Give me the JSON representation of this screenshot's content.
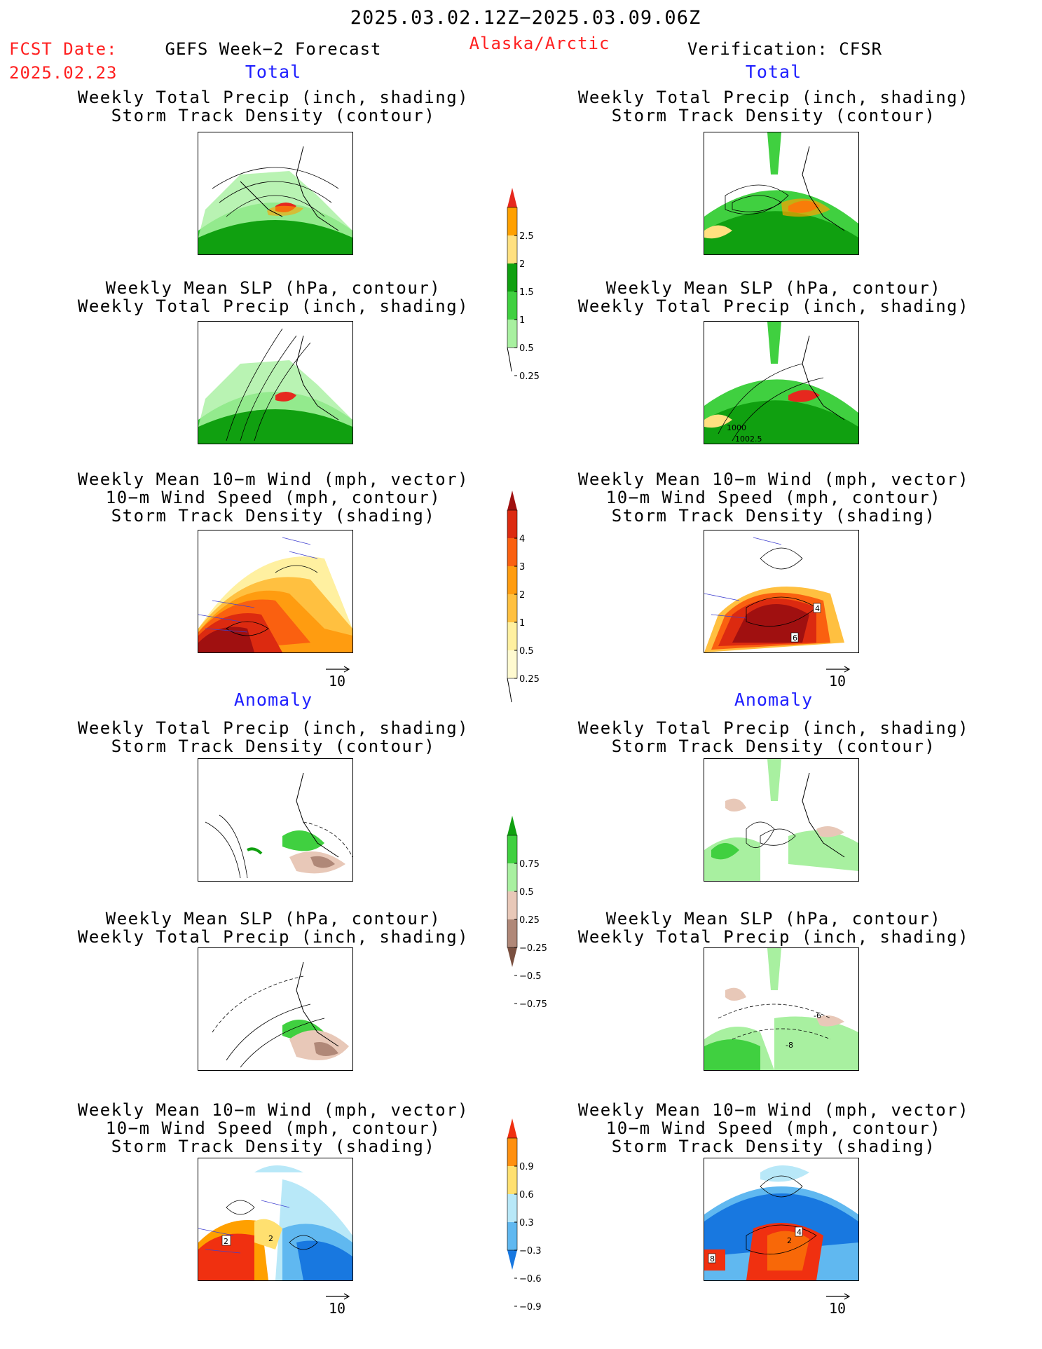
{
  "header": {
    "date_range": "2025.03.02.12Z−2025.03.09.06Z",
    "fcst_label": "FCST Date:",
    "fcst_date": "2025.02.23",
    "model": "GEFS Week−2 Forecast",
    "region": "Alaska/Arctic",
    "verification": "Verification: CFSR"
  },
  "sections": {
    "total": "Total",
    "anomaly": "Anomaly"
  },
  "panel_titles": {
    "precip_track": [
      "Weekly Total Precip (inch, shading)",
      "Storm Track Density (contour)"
    ],
    "slp_precip": [
      "Weekly Mean SLP (hPa, contour)",
      "Weekly Total Precip (inch, shading)"
    ],
    "wind_track": [
      "Weekly Mean 10−m Wind (mph, vector)",
      "10−m Wind Speed (mph, contour)",
      "Storm Track Density (shading)"
    ]
  },
  "vector_key": "10",
  "contour_labels": {
    "slp_total_cfsr": [
      "1000",
      "1002.5"
    ],
    "wind_total_cfsr": [
      "4",
      "6"
    ],
    "slp_anom_cfsr": [
      "-6",
      "-8"
    ],
    "wind_anom_gefs": [
      "2",
      "2"
    ],
    "wind_anom_cfsr": [
      "8",
      "4",
      "2"
    ]
  },
  "colorbars": {
    "precip_total": {
      "ticks": [
        "2.5",
        "2",
        "1.5",
        "1",
        "0.5",
        "0.25"
      ],
      "colors": [
        "#e6281e",
        "#ffa000",
        "#ffe080",
        "#10a010",
        "#40d040",
        "#a8f0a0"
      ]
    },
    "track_total": {
      "ticks": [
        "4",
        "3",
        "2",
        "1",
        "0.5",
        "0.25"
      ],
      "colors": [
        "#a01010",
        "#dc2a10",
        "#fa6010",
        "#ff9c10",
        "#ffc040",
        "#fff0a0",
        "#fffad0"
      ]
    },
    "precip_anom": {
      "ticks": [
        "0.75",
        "0.5",
        "0.25",
        "−0.25",
        "−0.5",
        "−0.75"
      ],
      "colors": [
        "#10a010",
        "#40d040",
        "#a8f0a0",
        "#e8c8b8",
        "#b08878",
        "#7a5040"
      ]
    },
    "track_anom": {
      "ticks": [
        "0.9",
        "0.6",
        "0.3",
        "−0.3",
        "−0.6",
        "−0.9"
      ],
      "colors": [
        "#f03010",
        "#ff9010",
        "#ffe070",
        "#b8e8f8",
        "#60b8f0",
        "#1878e0"
      ]
    }
  }
}
